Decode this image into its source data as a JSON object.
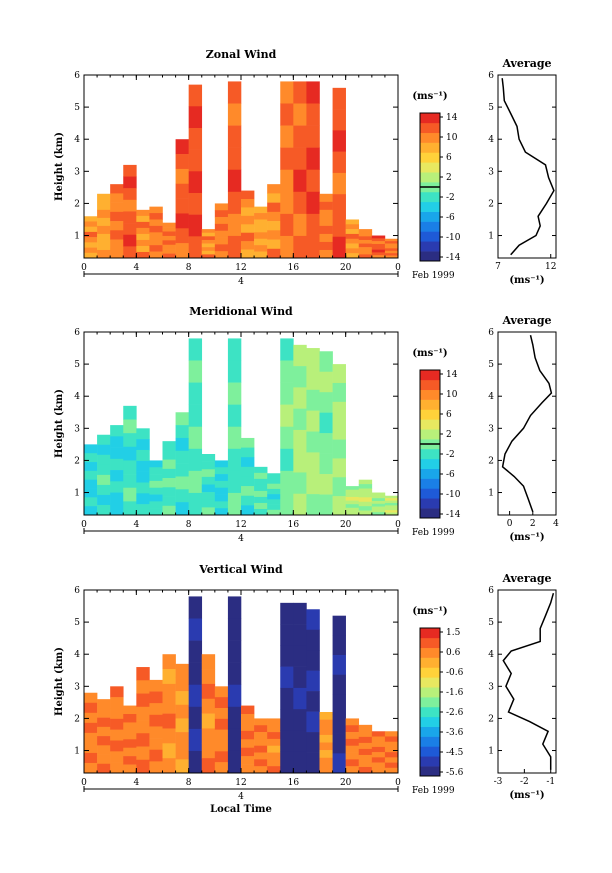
{
  "page": {
    "date_label": "Feb 1999",
    "day_label": "4",
    "xlabel": "Local Time"
  },
  "colors": {
    "colormap": [
      "#2b2d82",
      "#2a3bb0",
      "#1e5ad7",
      "#1a7fe6",
      "#19a6ea",
      "#22cfe6",
      "#3de3c4",
      "#7ef09c",
      "#b8f07a",
      "#e8e860",
      "#ffd23a",
      "#ffb030",
      "#ff8a2a",
      "#f65a26",
      "#e62a22"
    ],
    "line": "#000000"
  },
  "chart_data": [
    {
      "type": "heatmap",
      "title": "Zonal Wind",
      "ylabel": "Height (km)",
      "xlabel": "",
      "x_ticks": [
        "0",
        "4",
        "8",
        "12",
        "16",
        "20",
        "0"
      ],
      "xlim": [
        0,
        24
      ],
      "y_ticks": [
        "1",
        "2",
        "3",
        "4",
        "5",
        "6"
      ],
      "ylim": [
        0.3,
        6
      ],
      "colorbar": {
        "unit": "(ms⁻¹)",
        "ticks": [
          "14",
          "10",
          "6",
          "2",
          "-2",
          "-6",
          "-10",
          "-14"
        ],
        "range": [
          -14,
          14
        ],
        "zero_line_value": 0
      },
      "columns": [
        {
          "x": 0.5,
          "top": 1.6,
          "v": 9
        },
        {
          "x": 1.5,
          "top": 2.3,
          "v": 8
        },
        {
          "x": 2.5,
          "top": 2.6,
          "v": 10
        },
        {
          "x": 3.5,
          "top": 3.2,
          "v": 11
        },
        {
          "x": 4.5,
          "top": 1.8,
          "v": 9
        },
        {
          "x": 5.5,
          "top": 1.9,
          "v": 10
        },
        {
          "x": 6.5,
          "top": 1.4,
          "v": 10
        },
        {
          "x": 7.5,
          "top": 4.0,
          "v": 11
        },
        {
          "x": 8.5,
          "top": 5.7,
          "v": 12
        },
        {
          "x": 9.5,
          "top": 1.2,
          "v": 9
        },
        {
          "x": 10.5,
          "top": 2.0,
          "v": 10
        },
        {
          "x": 11.5,
          "top": 5.8,
          "v": 11
        },
        {
          "x": 12.5,
          "top": 2.4,
          "v": 9
        },
        {
          "x": 13.5,
          "top": 1.9,
          "v": 8
        },
        {
          "x": 14.5,
          "top": 2.6,
          "v": 9
        },
        {
          "x": 15.5,
          "top": 5.8,
          "v": 10
        },
        {
          "x": 16.5,
          "top": 5.8,
          "v": 11
        },
        {
          "x": 17.5,
          "top": 5.8,
          "v": 12
        },
        {
          "x": 18.5,
          "top": 2.3,
          "v": 10
        },
        {
          "x": 19.5,
          "top": 5.6,
          "v": 11
        },
        {
          "x": 20.5,
          "top": 1.5,
          "v": 9
        },
        {
          "x": 21.5,
          "top": 1.2,
          "v": 10
        },
        {
          "x": 22.5,
          "top": 1.0,
          "v": 11
        },
        {
          "x": 23.5,
          "top": 0.9,
          "v": 10
        }
      ],
      "profile": {
        "title": "Average",
        "xlabel": "(ms⁻¹)",
        "x_ticks": [
          "7",
          "12"
        ],
        "xlim": [
          7,
          12.5
        ],
        "points": [
          [
            8.2,
            0.4
          ],
          [
            9.0,
            0.7
          ],
          [
            10.6,
            1.0
          ],
          [
            11.0,
            1.3
          ],
          [
            10.8,
            1.6
          ],
          [
            11.6,
            2.0
          ],
          [
            12.3,
            2.4
          ],
          [
            11.8,
            2.8
          ],
          [
            11.5,
            3.2
          ],
          [
            9.6,
            3.6
          ],
          [
            9.0,
            4.0
          ],
          [
            8.8,
            4.4
          ],
          [
            8.2,
            4.8
          ],
          [
            7.6,
            5.2
          ],
          [
            7.5,
            5.6
          ],
          [
            7.4,
            5.9
          ]
        ]
      }
    },
    {
      "type": "heatmap",
      "title": "Meridional Wind",
      "ylabel": "Height (km)",
      "xlabel": "",
      "x_ticks": [
        "0",
        "4",
        "8",
        "12",
        "16",
        "20",
        "0"
      ],
      "xlim": [
        0,
        24
      ],
      "y_ticks": [
        "1",
        "2",
        "3",
        "4",
        "5",
        "6"
      ],
      "ylim": [
        0.3,
        6
      ],
      "colorbar": {
        "unit": "(ms⁻¹)",
        "ticks": [
          "14",
          "10",
          "6",
          "2",
          "-2",
          "-6",
          "-10",
          "-14"
        ],
        "range": [
          -14,
          14
        ],
        "zero_line_value": 0
      },
      "columns": [
        {
          "x": 0.5,
          "top": 2.5,
          "v": -3
        },
        {
          "x": 1.5,
          "top": 2.8,
          "v": -2
        },
        {
          "x": 2.5,
          "top": 3.1,
          "v": -3
        },
        {
          "x": 3.5,
          "top": 3.7,
          "v": -2
        },
        {
          "x": 4.5,
          "top": 3.0,
          "v": -3
        },
        {
          "x": 5.5,
          "top": 2.0,
          "v": -2
        },
        {
          "x": 6.5,
          "top": 2.6,
          "v": -1
        },
        {
          "x": 7.5,
          "top": 3.5,
          "v": -2
        },
        {
          "x": 8.5,
          "top": 5.8,
          "v": -1
        },
        {
          "x": 9.5,
          "top": 2.2,
          "v": -2
        },
        {
          "x": 10.5,
          "top": 2.0,
          "v": -3
        },
        {
          "x": 11.5,
          "top": 5.8,
          "v": -1
        },
        {
          "x": 12.5,
          "top": 2.7,
          "v": -2
        },
        {
          "x": 13.5,
          "top": 1.8,
          "v": -1
        },
        {
          "x": 14.5,
          "top": 1.6,
          "v": -2
        },
        {
          "x": 15.5,
          "top": 5.8,
          "v": 0
        },
        {
          "x": 16.5,
          "top": 5.6,
          "v": 1
        },
        {
          "x": 17.5,
          "top": 5.5,
          "v": 1
        },
        {
          "x": 18.5,
          "top": 5.4,
          "v": 0
        },
        {
          "x": 19.5,
          "top": 5.0,
          "v": 1
        },
        {
          "x": 20.5,
          "top": 1.2,
          "v": 2
        },
        {
          "x": 21.5,
          "top": 1.4,
          "v": 2
        },
        {
          "x": 22.5,
          "top": 1.0,
          "v": 1
        },
        {
          "x": 23.5,
          "top": 0.9,
          "v": 2
        }
      ],
      "profile": {
        "title": "Average",
        "xlabel": "(ms⁻¹)",
        "x_ticks": [
          "0",
          "2",
          "4"
        ],
        "xlim": [
          -1,
          4
        ],
        "points": [
          [
            2.0,
            0.4
          ],
          [
            1.6,
            0.8
          ],
          [
            1.2,
            1.2
          ],
          [
            0.4,
            1.5
          ],
          [
            -0.6,
            1.8
          ],
          [
            -0.4,
            2.2
          ],
          [
            0.2,
            2.6
          ],
          [
            1.2,
            3.0
          ],
          [
            1.8,
            3.4
          ],
          [
            2.8,
            3.8
          ],
          [
            3.6,
            4.1
          ],
          [
            3.4,
            4.4
          ],
          [
            2.6,
            4.8
          ],
          [
            2.2,
            5.2
          ],
          [
            2.0,
            5.6
          ],
          [
            1.8,
            5.9
          ]
        ]
      }
    },
    {
      "type": "heatmap",
      "title": "Vertical Wind",
      "ylabel": "Height (km)",
      "xlabel": "Local Time",
      "x_ticks": [
        "0",
        "4",
        "8",
        "12",
        "16",
        "20",
        "0"
      ],
      "xlim": [
        0,
        24
      ],
      "y_ticks": [
        "1",
        "2",
        "3",
        "4",
        "5",
        "6"
      ],
      "ylim": [
        0.3,
        6
      ],
      "colorbar": {
        "unit": "(ms⁻¹)",
        "ticks": [
          "1.5",
          "0.6",
          "-0.6",
          "-1.6",
          "-2.6",
          "-3.6",
          "-4.5",
          "-5.6"
        ],
        "range": [
          -6.0,
          2.0
        ],
        "zero_line_value": null
      },
      "columns": [
        {
          "x": 0.5,
          "top": 2.8,
          "v": 0.9
        },
        {
          "x": 1.5,
          "top": 2.6,
          "v": 0.9
        },
        {
          "x": 2.5,
          "top": 3.0,
          "v": 0.9
        },
        {
          "x": 3.5,
          "top": 2.4,
          "v": 0.8
        },
        {
          "x": 4.5,
          "top": 3.6,
          "v": 0.9
        },
        {
          "x": 5.5,
          "top": 3.2,
          "v": 0.8
        },
        {
          "x": 6.5,
          "top": 4.0,
          "v": 0.7
        },
        {
          "x": 7.5,
          "top": 3.7,
          "v": 0.4
        },
        {
          "x": 8.5,
          "top": 5.8,
          "v": -5.6
        },
        {
          "x": 9.5,
          "top": 4.0,
          "v": 0.6
        },
        {
          "x": 10.5,
          "top": 3.0,
          "v": 0.8
        },
        {
          "x": 11.5,
          "top": 5.8,
          "v": -5.8
        },
        {
          "x": 12.5,
          "top": 2.4,
          "v": 0.8
        },
        {
          "x": 13.5,
          "top": 2.0,
          "v": 0.8
        },
        {
          "x": 14.5,
          "top": 2.0,
          "v": 0.6
        },
        {
          "x": 15.5,
          "top": 5.6,
          "v": -5.7
        },
        {
          "x": 16.5,
          "top": 5.6,
          "v": -5.8
        },
        {
          "x": 17.5,
          "top": 5.4,
          "v": -5.6
        },
        {
          "x": 18.5,
          "top": 2.2,
          "v": 0.5
        },
        {
          "x": 19.5,
          "top": 5.2,
          "v": -5.7
        },
        {
          "x": 20.5,
          "top": 2.0,
          "v": 0.9
        },
        {
          "x": 21.5,
          "top": 1.8,
          "v": 0.9
        },
        {
          "x": 22.5,
          "top": 1.6,
          "v": 0.8
        },
        {
          "x": 23.5,
          "top": 1.6,
          "v": 0.9
        }
      ],
      "profile": {
        "title": "Average",
        "xlabel": "(ms⁻¹)",
        "x_ticks": [
          "-3",
          "-2",
          "-1"
        ],
        "xlim": [
          -3,
          -0.8
        ],
        "points": [
          [
            -1.0,
            0.4
          ],
          [
            -1.0,
            0.8
          ],
          [
            -1.3,
            1.2
          ],
          [
            -1.1,
            1.6
          ],
          [
            -1.8,
            1.9
          ],
          [
            -2.6,
            2.2
          ],
          [
            -2.4,
            2.6
          ],
          [
            -2.7,
            3.0
          ],
          [
            -2.5,
            3.4
          ],
          [
            -2.8,
            3.8
          ],
          [
            -2.5,
            4.1
          ],
          [
            -1.4,
            4.4
          ],
          [
            -1.4,
            4.8
          ],
          [
            -1.2,
            5.2
          ],
          [
            -1.0,
            5.6
          ],
          [
            -0.9,
            5.9
          ]
        ]
      }
    }
  ]
}
